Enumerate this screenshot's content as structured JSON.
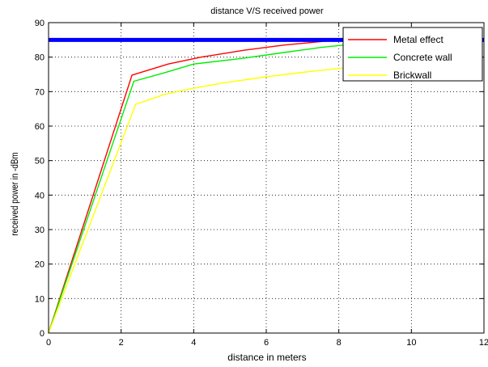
{
  "chart_data": {
    "type": "line",
    "title": "distance V/S received power",
    "xlabel": "distance in meters",
    "ylabel": "received power in -dBm",
    "xlim": [
      0,
      12
    ],
    "ylim": [
      0,
      90
    ],
    "xticks": [
      0,
      2,
      4,
      6,
      8,
      10,
      12
    ],
    "yticks": [
      0,
      10,
      20,
      30,
      40,
      50,
      60,
      70,
      80,
      90
    ],
    "grid": true,
    "legend_position": "top-right",
    "threshold": {
      "value": 85,
      "color": "#0000ff"
    },
    "series": [
      {
        "name": "Metal effect",
        "color": "#ff0000",
        "x": [
          0,
          2.3,
          3.3,
          4.2,
          5.4,
          6.5,
          7.6,
          8.6
        ],
        "y": [
          0,
          74.8,
          78.0,
          80.0,
          82.0,
          83.5,
          84.6,
          85.4
        ]
      },
      {
        "name": "Concrete wall",
        "color": "#00ee00",
        "x": [
          0,
          2.35,
          3.2,
          4.0,
          5.3,
          6.4,
          7.5,
          8.6
        ],
        "y": [
          0,
          73.0,
          75.5,
          78.0,
          79.6,
          81.2,
          82.8,
          84.0
        ]
      },
      {
        "name": "Brickwall",
        "color": "#ffff00",
        "x": [
          0,
          2.4,
          3.2,
          4.0,
          4.8,
          6.0,
          7.1,
          8.6
        ],
        "y": [
          0,
          66.3,
          69.2,
          71.0,
          72.5,
          74.3,
          75.7,
          77.4
        ]
      }
    ]
  }
}
